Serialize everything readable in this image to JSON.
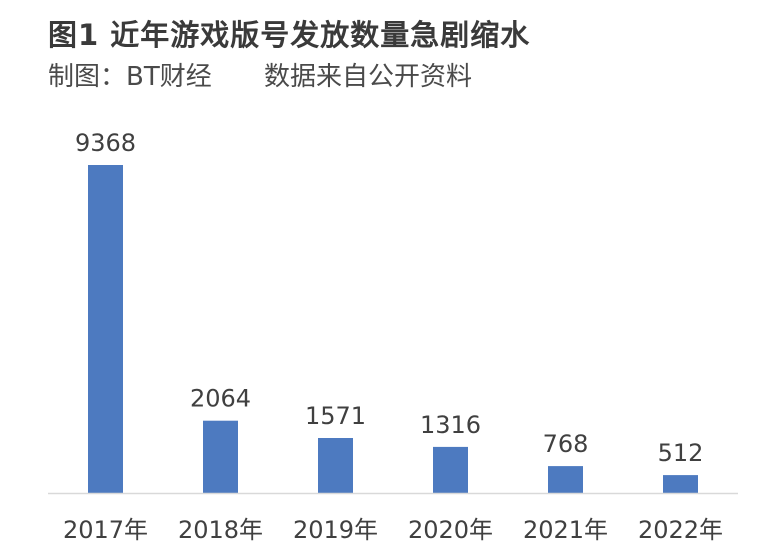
{
  "header": {
    "title": "图1 近年游戏版号发放数量急剧缩水",
    "credit": "制图：BT财经",
    "source": "数据来自公开资料"
  },
  "chart_data": {
    "type": "bar",
    "title": "图1 近年游戏版号发放数量急剧缩水",
    "categories": [
      "2017年",
      "2018年",
      "2019年",
      "2020年",
      "2021年",
      "2022年"
    ],
    "values": [
      9368,
      2064,
      1571,
      1316,
      768,
      512
    ],
    "bar_color": "#4d7ac0",
    "axis_color": "#d9d9d9",
    "ylim": [
      0,
      9368
    ],
    "grid": false,
    "legend": "none",
    "data_labels": true,
    "xlabel": "",
    "ylabel": ""
  }
}
